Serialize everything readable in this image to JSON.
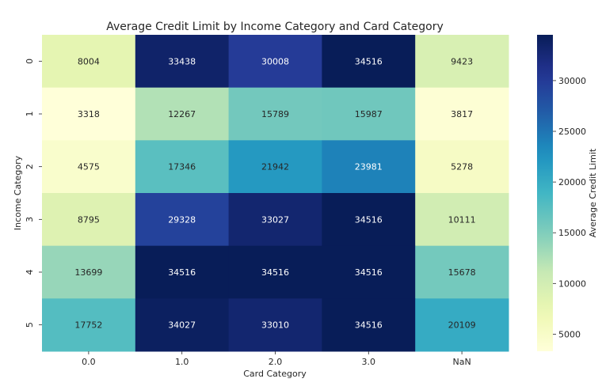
{
  "chart_data": {
    "type": "heatmap",
    "title": "Average Credit Limit by Income Category and Card Category",
    "xlabel": "Card Category",
    "ylabel": "Income Category",
    "x_categories": [
      "0.0",
      "1.0",
      "2.0",
      "3.0",
      "NaN"
    ],
    "y_categories": [
      "0",
      "1",
      "2",
      "3",
      "4",
      "5"
    ],
    "values": [
      [
        8004,
        33438,
        30008,
        34516,
        9423
      ],
      [
        3318,
        12267,
        15789,
        15987,
        3817
      ],
      [
        4575,
        17346,
        21942,
        23981,
        5278
      ],
      [
        8795,
        29328,
        33027,
        34516,
        10111
      ],
      [
        13699,
        34516,
        34516,
        34516,
        15678
      ],
      [
        17752,
        34027,
        33010,
        34516,
        20109
      ]
    ],
    "colorbar": {
      "label": "Average Credit Limit",
      "range": [
        3318,
        34516
      ],
      "ticks": [
        5000,
        10000,
        15000,
        20000,
        25000,
        30000
      ],
      "colormap": "YlGnBu"
    },
    "grid": false
  }
}
